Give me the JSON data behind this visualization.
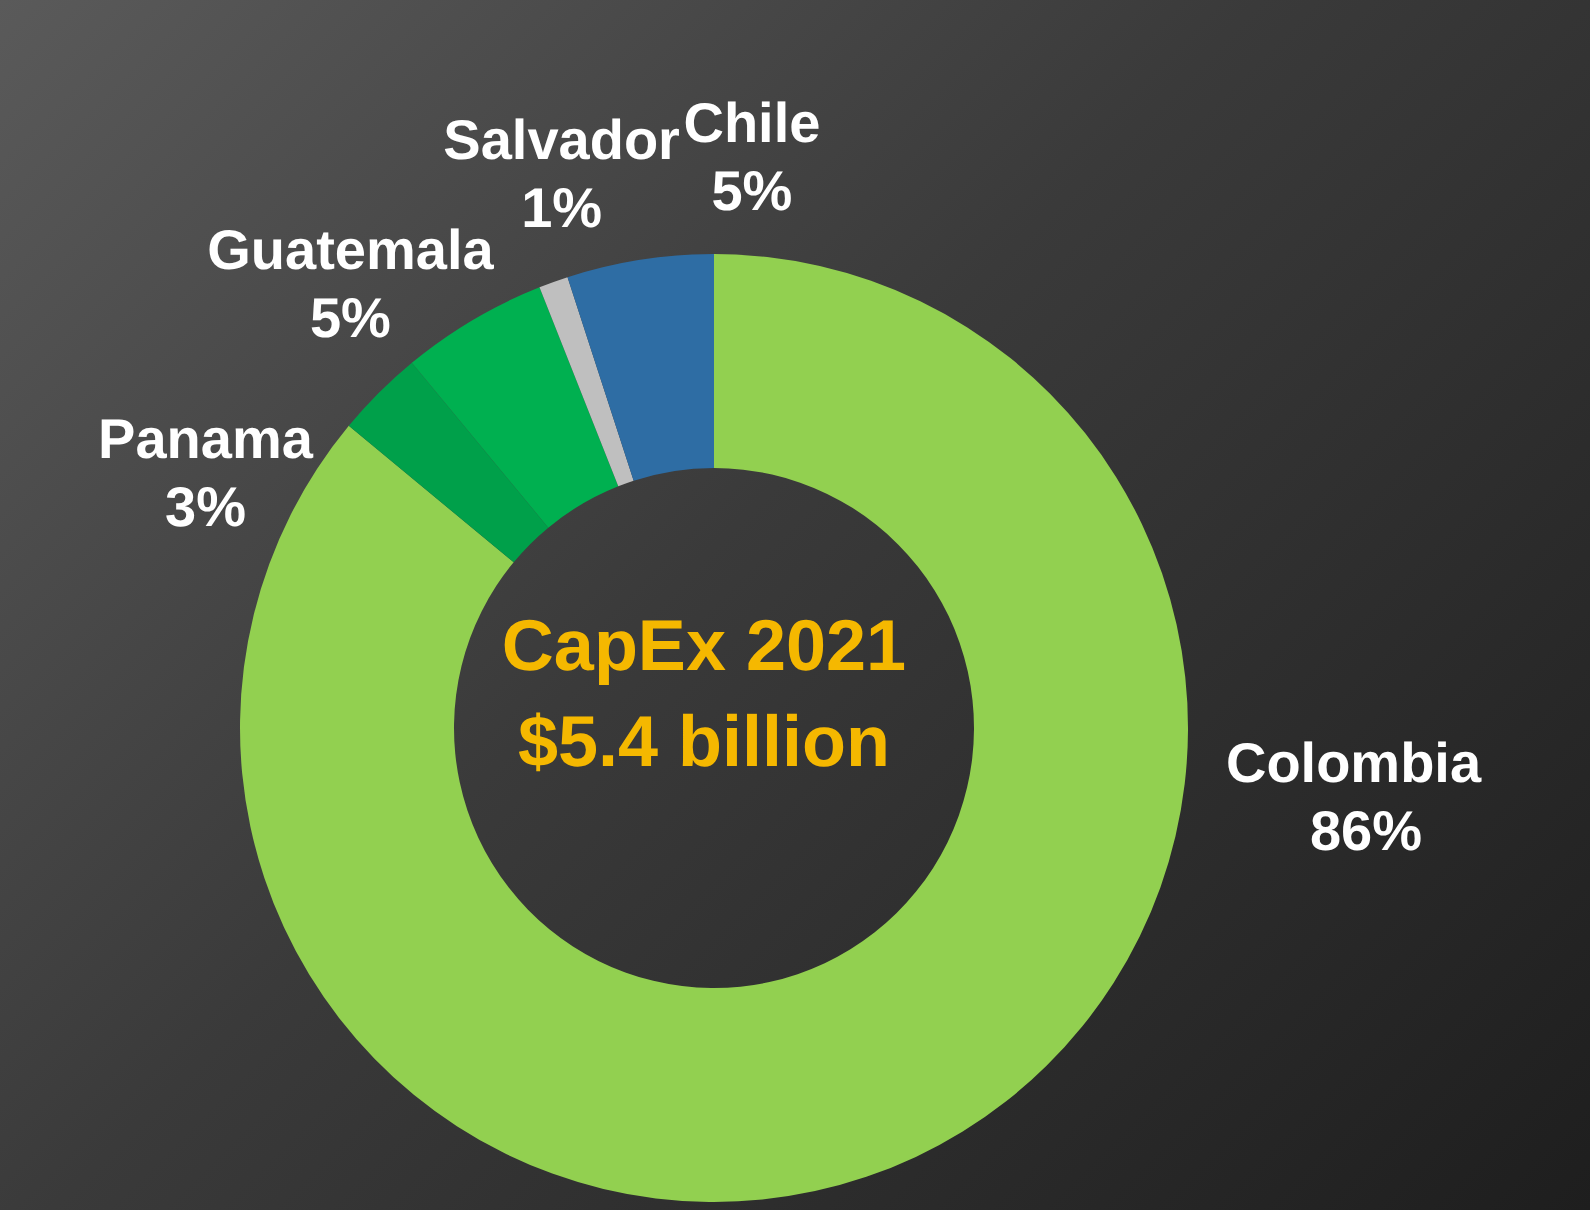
{
  "chart_data": {
    "type": "donut",
    "title": "CapEx 2021",
    "subtitle": "$5.4 billion",
    "categories": [
      "Colombia",
      "Panama",
      "Guatemala",
      "Salvador",
      "Chile"
    ],
    "values": [
      86,
      3,
      5,
      1,
      5
    ],
    "colors": [
      "#92d050",
      "#00a04a",
      "#00b050",
      "#bfbfbf",
      "#2e6da4"
    ],
    "value_labels": [
      "86%",
      "3%",
      "5%",
      "1%",
      "5%"
    ]
  }
}
